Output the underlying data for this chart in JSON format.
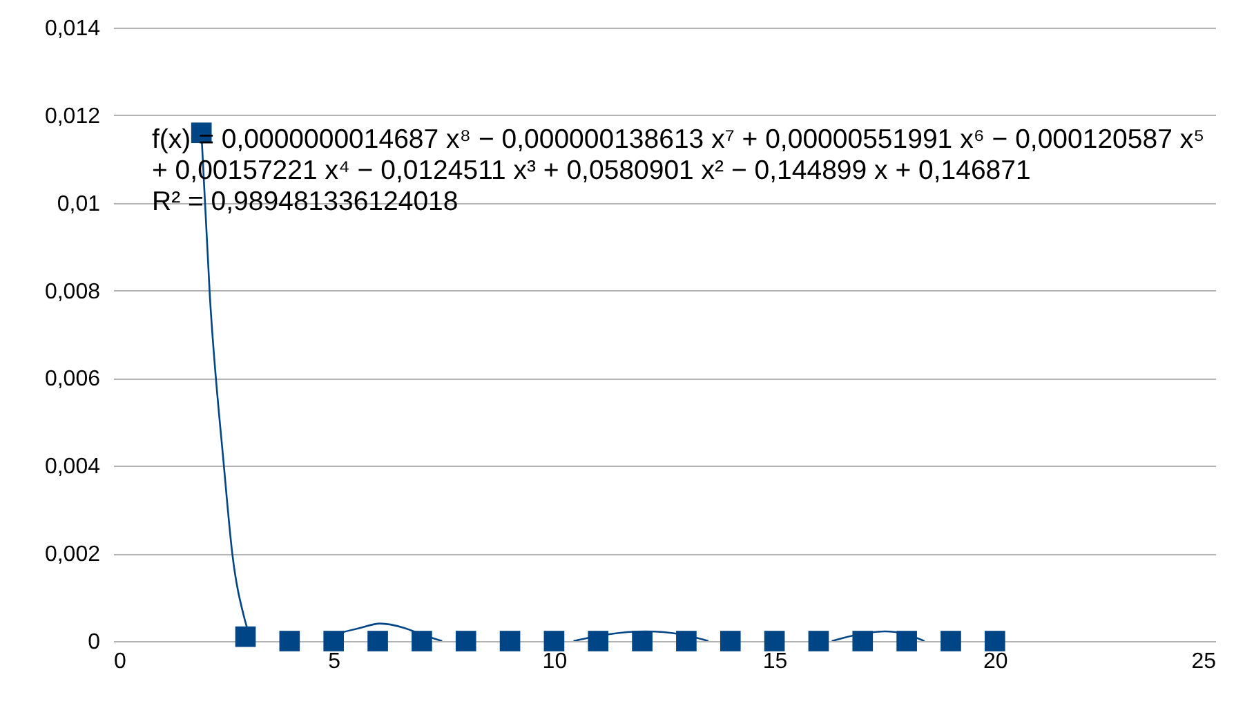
{
  "chart_data": {
    "type": "scatter",
    "marker": "square",
    "grid": "y",
    "xlim": [
      0,
      25
    ],
    "xticks": [
      0,
      5,
      10,
      15,
      20,
      25
    ],
    "ylim": [
      0,
      0.014
    ],
    "yticks": [
      0,
      {
        "value": 0.002,
        "label": "0,002"
      },
      {
        "value": 0.004,
        "label": "0,004"
      },
      {
        "value": 0.006,
        "label": "0,006"
      },
      {
        "value": 0.008,
        "label": "0,008"
      },
      {
        "value": 0.01,
        "label": "0,01"
      },
      {
        "value": 0.012,
        "label": "0,012"
      },
      {
        "value": 0.014,
        "label": "0,014"
      }
    ],
    "x": [
      2,
      3,
      4,
      5,
      6,
      7,
      8,
      9,
      10,
      11,
      12,
      13,
      14,
      15,
      16,
      17,
      18,
      19,
      20
    ],
    "series": [
      {
        "color": "#004586",
        "values": [
          0.0116,
          0.0001,
          0,
          0,
          0,
          0,
          0,
          0,
          0,
          0,
          0,
          0,
          0,
          0,
          0,
          0,
          0,
          0,
          0
        ]
      },
      {
        "type": "line",
        "marker": "none",
        "color": "#004586",
        "x": [
          2,
          2.19,
          2.51,
          2.7,
          2.97,
          3.1,
          4,
          5.2,
          5.6,
          6.05,
          6.6,
          7.0,
          7.46,
          8,
          10.44,
          11.2,
          12.07,
          12.9,
          13.5,
          15,
          16.3,
          16.9,
          17.5,
          18.0,
          18.4
        ],
        "values": [
          0.0116,
          0.0079,
          0.004,
          0.002,
          0.00054,
          0.0001,
          null,
          0.0002,
          0.0003,
          0.0004,
          0.0003,
          0.00015,
          0,
          null,
          0,
          0.00015,
          0.00022,
          0.00015,
          0,
          null,
          0,
          0.00015,
          0.00022,
          0.00015,
          0
        ]
      }
    ],
    "annotations": [
      "f(x) = 0,0000000014687 x⁸ − 0,000000138613 x⁷ + 0,00000551991 x⁶ − 0,000120587 x⁵",
      "  + 0,00157221 x⁴ − 0,0124511 x³ + 0,0580901 x² − 0,144899 x + 0,146871",
      "R² = 0,989481336124018"
    ]
  }
}
